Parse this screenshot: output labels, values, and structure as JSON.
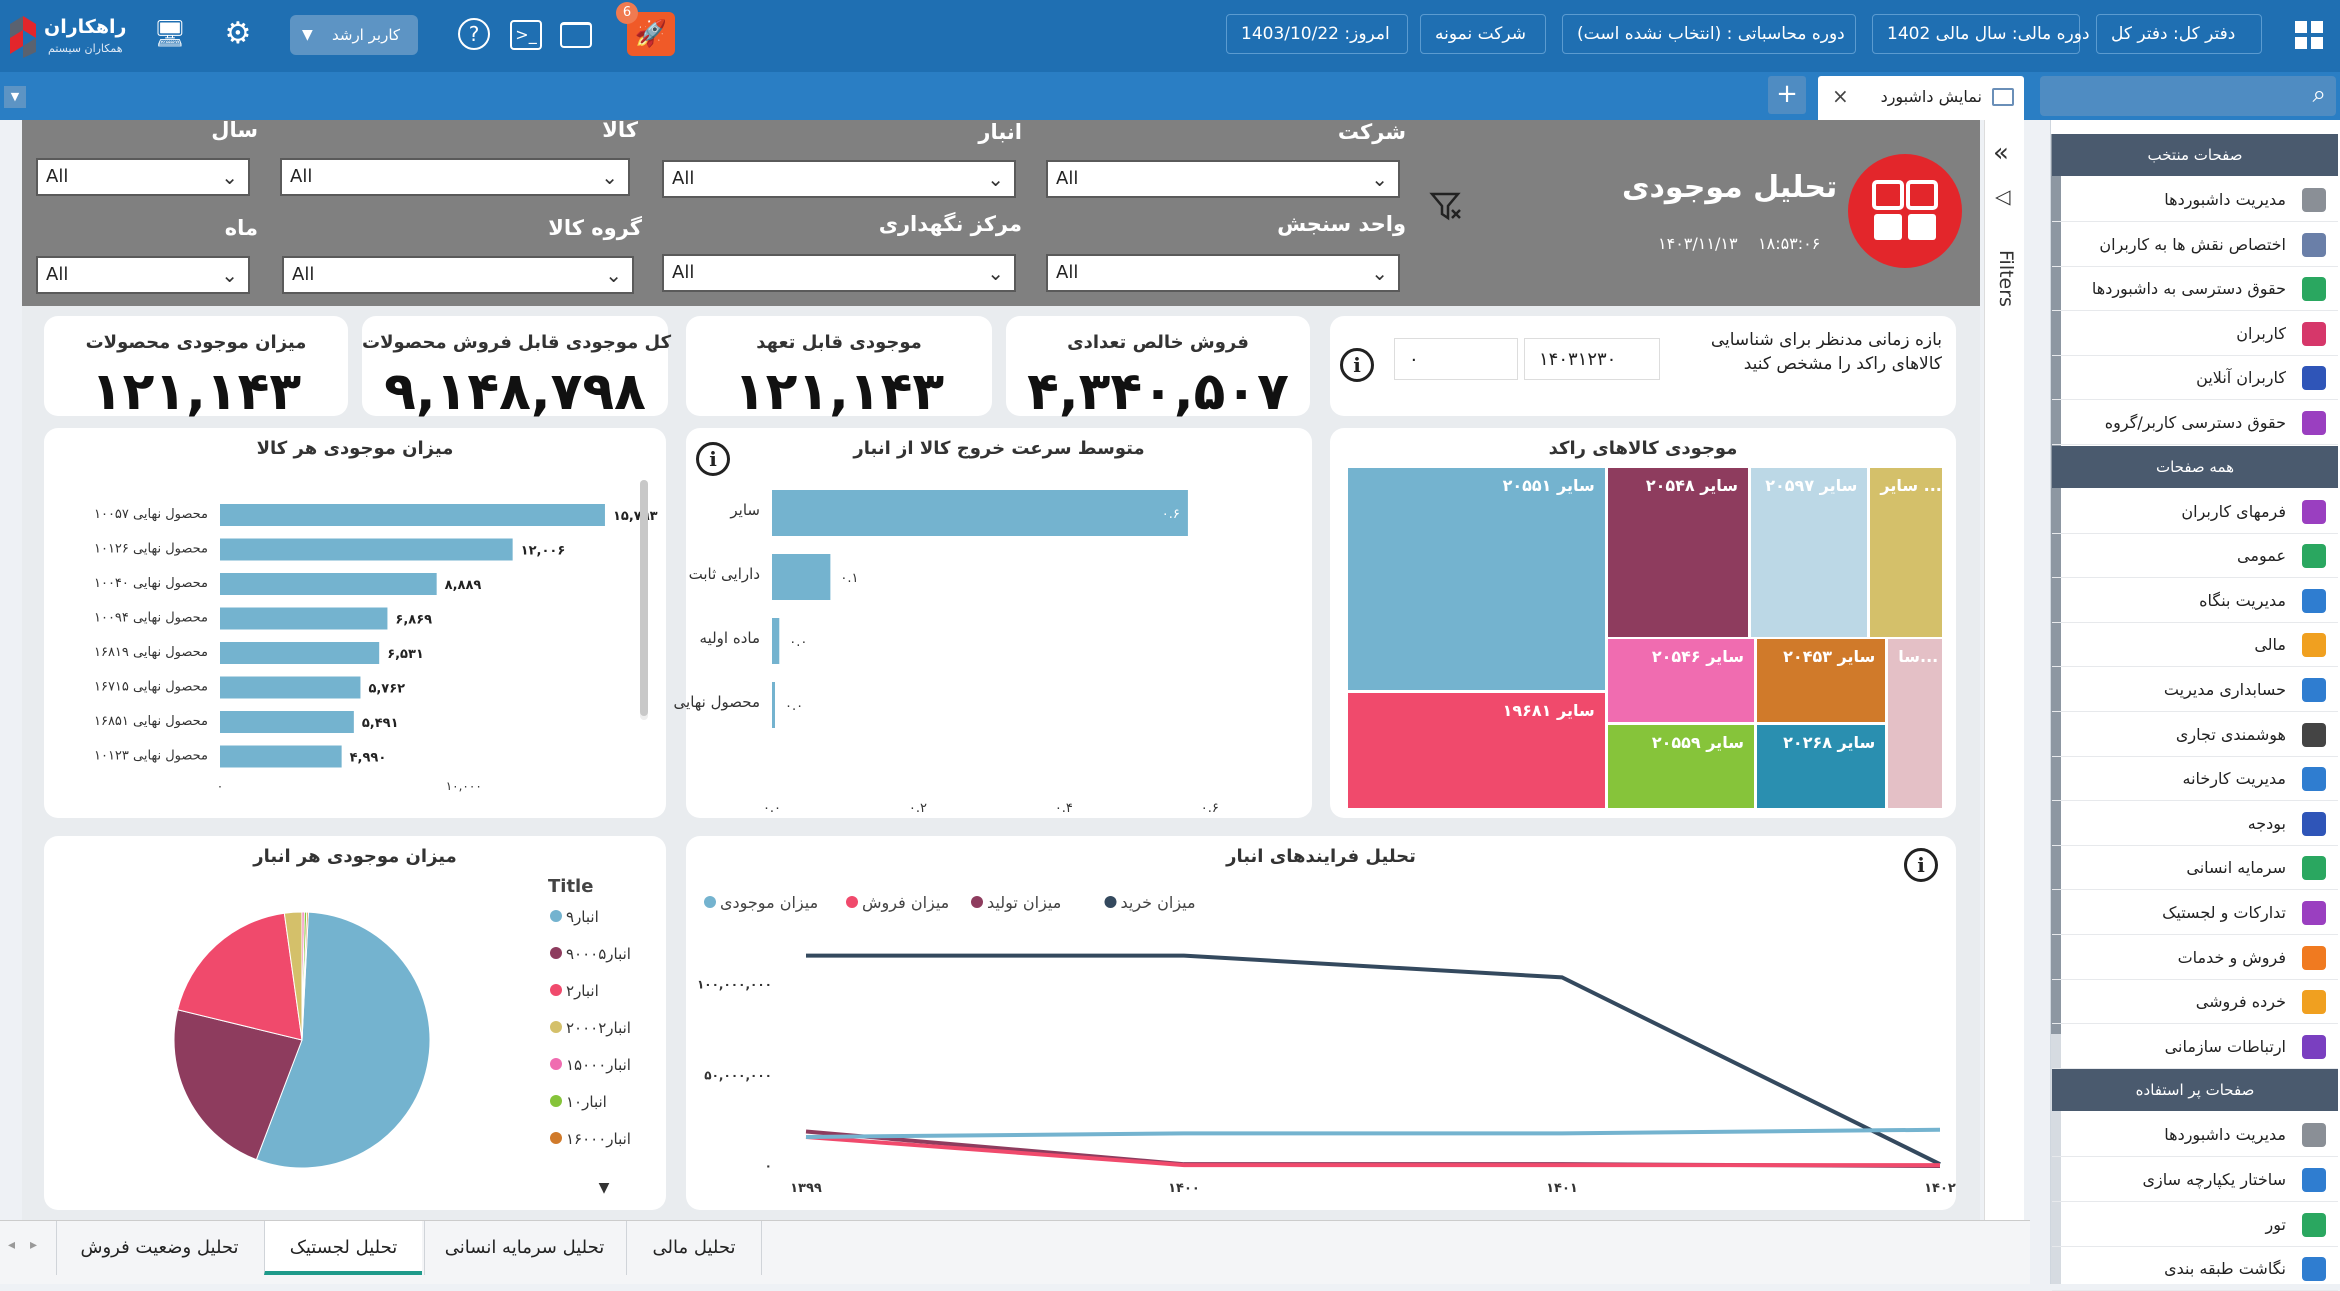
{
  "header": {
    "brand_name": "راهکاران",
    "brand_sub": "همکاران سیستم",
    "user_role": "کاربر ارشد",
    "notif_count": "6",
    "date_label": "امروز: 1403/10/22",
    "company": "شرکت نمونه",
    "acc_period": "دوره محاسباتی : (انتخاب نشده است)",
    "fiscal_period": "دوره مالی: سال مالی 1402",
    "ledger": "دفتر کل: دفتر کل"
  },
  "tabstrip": {
    "active_tab": "نمایش داشبورد",
    "add_label": "+",
    "close_label": "×"
  },
  "sidebar": {
    "sections": [
      {
        "title": "صفحات منتخب",
        "items": [
          {
            "label": "مدیریت داشبوردها",
            "icon": "dashboard-icon",
            "color": "#8a8f96"
          },
          {
            "label": "اختصاص نقش ها به کاربران",
            "icon": "role-icon",
            "color": "#6a7fa8"
          },
          {
            "label": "حقوق دسترسی به داشبوردها",
            "icon": "lock-icon",
            "color": "#2aa760"
          },
          {
            "label": "کاربران",
            "icon": "user-icon",
            "color": "#d6376a"
          },
          {
            "label": "کاربران آنلاین",
            "icon": "online-users-icon",
            "color": "#2f55b8"
          },
          {
            "label": "حقوق دسترسی کاربر/گروه",
            "icon": "user-lock-icon",
            "color": "#9a3fc0"
          }
        ]
      },
      {
        "title": "همه صفحات",
        "items": [
          {
            "label": "فرمهای کاربران",
            "icon": "forms-icon",
            "color": "#9a3fc0"
          },
          {
            "label": "عمومی",
            "icon": "general-icon",
            "color": "#2aa760"
          },
          {
            "label": "مدیریت بنگاه",
            "icon": "building-icon",
            "color": "#2f7dd0"
          },
          {
            "label": "مالی",
            "icon": "finance-icon",
            "color": "#f0a020"
          },
          {
            "label": "حسابداری مدیریت",
            "icon": "calculator-icon",
            "color": "#2f7dd0"
          },
          {
            "label": "هوشمندی تجاری",
            "icon": "bi-icon",
            "color": "#444"
          },
          {
            "label": "مدیریت کارخانه",
            "icon": "factory-icon",
            "color": "#2f7dd0"
          },
          {
            "label": "بودجه",
            "icon": "budget-icon",
            "color": "#2f55b8"
          },
          {
            "label": "سرمایه انسانی",
            "icon": "people-icon",
            "color": "#2aa760"
          },
          {
            "label": "تدارکات و لجستیک",
            "icon": "logistics-icon",
            "color": "#9a3fc0"
          },
          {
            "label": "فروش و خدمات",
            "icon": "sales-icon",
            "color": "#f07a20"
          },
          {
            "label": "خرده فروشی",
            "icon": "retail-icon",
            "color": "#f0a020"
          },
          {
            "label": "ارتباطات سازمانی",
            "icon": "org-icon",
            "color": "#7a3fc0"
          }
        ]
      },
      {
        "title": "صفحات پر استفاده",
        "items": [
          {
            "label": "مدیریت داشبوردها",
            "icon": "dashboard-icon",
            "color": "#8a8f96"
          },
          {
            "label": "ساختار یکپارچه سازی",
            "icon": "structure-icon",
            "color": "#2f7dd0"
          },
          {
            "label": "تور",
            "icon": "tour-icon",
            "color": "#2aa760"
          },
          {
            "label": "نگاشت طبقه بندی",
            "icon": "mapping-icon",
            "color": "#2f7dd0"
          }
        ]
      }
    ]
  },
  "filters_label": "Filters",
  "dashboard": {
    "title": "تحلیل موجودی",
    "time": "۱۸:۵۳:۰۶",
    "date": "۱۴۰۳/۱۱/۱۳",
    "filters": [
      {
        "label": "شرکت",
        "value": "All"
      },
      {
        "label": "انبار",
        "value": "All"
      },
      {
        "label": "کالا",
        "value": "All"
      },
      {
        "label": "سال",
        "value": "All"
      },
      {
        "label": "واحد سنجش",
        "value": "All"
      },
      {
        "label": "مرکز نگهداری",
        "value": "All"
      },
      {
        "label": "گروه کالا",
        "value": "All"
      },
      {
        "label": "ماه",
        "value": "All"
      }
    ],
    "period_prompt_1": "بازه زمانی مدنظر برای شناسایی",
    "period_prompt_2": "کالاهای راکد را مشخص کنید",
    "period_from": "۱۴۰۳۱۲۳۰",
    "period_to": "۰",
    "kpis": [
      {
        "title": "فروش خالص تعدادی",
        "value": "۴,۳۴۰,۵۰۷"
      },
      {
        "title": "موجودی قابل تعهد",
        "value": "۱۲۱,۱۴۳"
      },
      {
        "title": "کل موجودی قابل فروش محصولات",
        "value": "۹,۱۴۸,۷۹۸"
      },
      {
        "title": "میزان موجودی محصولات",
        "value": "۱۲۱,۱۴۳"
      }
    ]
  },
  "chart_data": [
    {
      "type": "treemap",
      "title": "موجودی کالاهای راکد",
      "items": [
        {
          "label": "سایر ۲۰۵۵۱",
          "color": "#74b3cf"
        },
        {
          "label": "سایر ۲۰۵۴۸",
          "color": "#8e3c5e"
        },
        {
          "label": "سایر ۲۰۵۹۷",
          "color": "#bcd8e6"
        },
        {
          "label": "سایر ...",
          "color": "#d4c06a"
        },
        {
          "label": "سایر ۱۹۶۸۱",
          "color": "#f04a6c"
        },
        {
          "label": "سایر ۲۰۵۴۶",
          "color": "#f06cb0"
        },
        {
          "label": "سایر ۲۰۴۵۳",
          "color": "#d07a2a"
        },
        {
          "label": "سا...",
          "color": "#e4c0c6"
        },
        {
          "label": "سایر ۲۰۵۵۹",
          "color": "#86c43a"
        },
        {
          "label": "سایر ۲۰۲۶۸",
          "color": "#2a8fb0"
        }
      ]
    },
    {
      "type": "bar",
      "title": "متوسط سرعت خروج کالا از انبار",
      "categories": [
        "سایر",
        "دارایی ثابت",
        "ماده اولیه",
        "محصول نهایی"
      ],
      "values": [
        0.57,
        0.08,
        0.01,
        0.0
      ],
      "value_labels": [
        "۰.۶",
        "۰.۱",
        "۰.۰",
        "۰.۰"
      ],
      "x_ticks": [
        "۰.۰",
        "۰.۲",
        "۰.۴",
        "۰.۶"
      ],
      "xlim": [
        0,
        0.62
      ],
      "color": "#74b3cf"
    },
    {
      "type": "bar",
      "title": "میزان موجودی هر کالا",
      "categories": [
        "محصول نهایی ۱۰۰۵۷",
        "محصول نهایی ۱۰۱۲۶",
        "محصول نهایی ۱۰۰۴۰",
        "محصول نهایی ۱۰۰۹۴",
        "محصول نهایی ۱۶۸۱۹",
        "محصول نهایی ۱۶۷۱۵",
        "محصول نهایی ۱۶۸۵۱",
        "محصول نهایی ۱۰۱۲۳"
      ],
      "values": [
        15793,
        12006,
        8889,
        6869,
        6531,
        5762,
        5491,
        4990
      ],
      "value_labels": [
        "۱۵,۷۹۳",
        "۱۲,۰۰۶",
        "۸,۸۸۹",
        "۶,۸۶۹",
        "۶,۵۳۱",
        "۵,۷۶۲",
        "۵,۴۹۱",
        "۴,۹۹۰"
      ],
      "x_ticks": [
        "۰",
        "۱۰,۰۰۰"
      ],
      "xlim": [
        0,
        16000
      ],
      "color": "#74b3cf"
    },
    {
      "type": "pie",
      "title": "میزان موجودی هر انبار",
      "legend_title": "Title",
      "slices": [
        {
          "name": "انبار۹",
          "value": 55,
          "color": "#74b3cf"
        },
        {
          "name": "انبار۹۰۰۰۵",
          "value": 23,
          "color": "#8e3c5e"
        },
        {
          "name": "انبار۲",
          "value": 19,
          "color": "#f04a6c"
        },
        {
          "name": "انبار۲۰۰۰۲",
          "value": 2.2,
          "color": "#d4c06a"
        },
        {
          "name": "انبار۱۵۰۰۰",
          "value": 0.3,
          "color": "#f06cb0"
        },
        {
          "name": "انبار۱۰",
          "value": 0.3,
          "color": "#86c43a"
        },
        {
          "name": "انبار۱۶۰۰۰",
          "value": 0.2,
          "color": "#d07a2a"
        }
      ]
    },
    {
      "type": "line",
      "title": "تحلیل فرایندهای انبار",
      "x": [
        "۱۳۹۹",
        "۱۴۰۰",
        "۱۴۰۱",
        "۱۴۰۲"
      ],
      "y_ticks": [
        {
          "v": 0,
          "label": "۰"
        },
        {
          "v": 50000000,
          "label": "۵۰,۰۰۰,۰۰۰"
        },
        {
          "v": 100000000,
          "label": "۱۰۰,۰۰۰,۰۰۰"
        }
      ],
      "ylim": [
        0,
        118000000
      ],
      "series": [
        {
          "name": "میزان خرید",
          "color": "#34495e",
          "values": [
            116000000,
            116000000,
            104000000,
            1000000
          ]
        },
        {
          "name": "میزان تولید",
          "color": "#8e3c5e",
          "values": [
            19000000,
            1000000,
            1000000,
            0
          ]
        },
        {
          "name": "میزان فروش",
          "color": "#f04a6c",
          "values": [
            16000000,
            500000,
            500000,
            500000
          ]
        },
        {
          "name": "میزان موجودی",
          "color": "#74b3cf",
          "values": [
            16000000,
            18000000,
            18000000,
            20000000
          ]
        }
      ]
    }
  ],
  "bottom_tabs": [
    {
      "label": "تحلیل مالی"
    },
    {
      "label": "تحلیل سرمایه انسانی"
    },
    {
      "label": "تحلیل لجستیک"
    },
    {
      "label": "تحلیل وضعیت فروش"
    }
  ]
}
